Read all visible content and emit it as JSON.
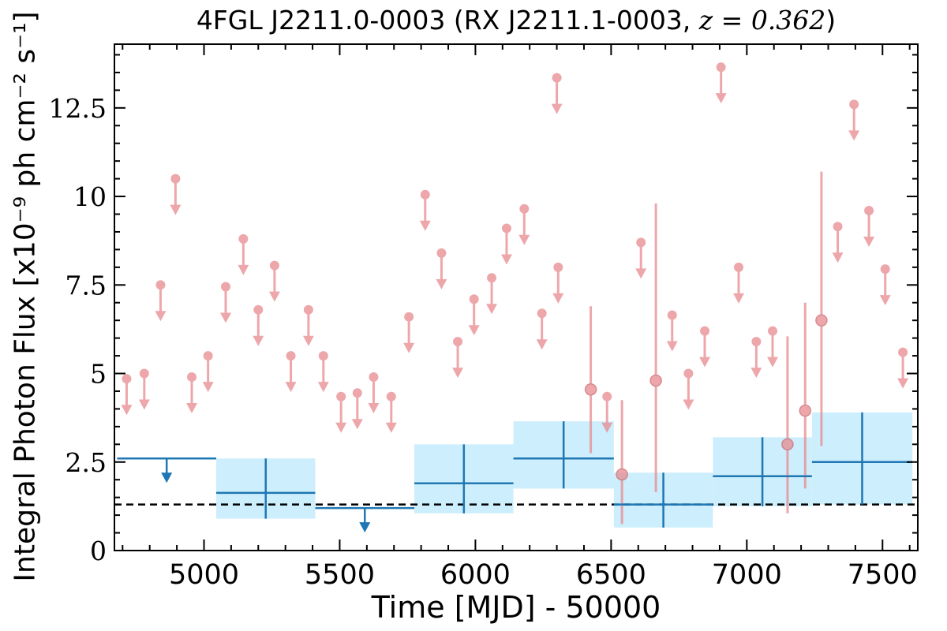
{
  "chart_data": {
    "type": "scatter",
    "title_prefix": "4FGL J2211.0-0003 (RX J2211.1-0003, ",
    "title_math": "z = 0.362",
    "title_suffix": ")",
    "xlabel": "Time [MJD] - 50000",
    "ylabel": "Integral Photon Flux [x10⁻⁹ ph cm⁻² s⁻¹]",
    "xlim": [
      4670,
      7630
    ],
    "ylim": [
      0,
      14.3
    ],
    "xticks": [
      5000,
      5500,
      6000,
      6500,
      7000,
      7500
    ],
    "yticks": [
      0,
      2.5,
      5,
      7.5,
      10,
      12.5
    ],
    "ytick_labels": [
      "0",
      "2.5",
      "5",
      "7.5",
      "10",
      "12.5"
    ],
    "colors": {
      "monthly": "#e88a8f",
      "yearly": "#1f77b4",
      "yearly_band": "#cdeefc",
      "baseline": "#000000"
    },
    "baseline_flux": 1.3,
    "monthly_upper_limits": [
      [
        4715,
        4.85
      ],
      [
        4780,
        5.0
      ],
      [
        4840,
        7.5
      ],
      [
        4895,
        10.5
      ],
      [
        4955,
        4.9
      ],
      [
        5015,
        5.5
      ],
      [
        5080,
        7.45
      ],
      [
        5145,
        8.8
      ],
      [
        5200,
        6.8
      ],
      [
        5260,
        8.05
      ],
      [
        5320,
        5.5
      ],
      [
        5385,
        6.8
      ],
      [
        5440,
        5.5
      ],
      [
        5505,
        4.35
      ],
      [
        5565,
        4.45
      ],
      [
        5625,
        4.9
      ],
      [
        5690,
        4.35
      ],
      [
        5755,
        6.6
      ],
      [
        5815,
        10.05
      ],
      [
        5875,
        8.4
      ],
      [
        5935,
        5.9
      ],
      [
        5995,
        7.1
      ],
      [
        6060,
        7.7
      ],
      [
        6115,
        9.1
      ],
      [
        6180,
        9.65
      ],
      [
        6245,
        6.7
      ],
      [
        6300,
        13.35
      ],
      [
        6305,
        8.0
      ],
      [
        6485,
        4.35
      ],
      [
        6610,
        8.7
      ],
      [
        6725,
        6.65
      ],
      [
        6785,
        5.0
      ],
      [
        6845,
        6.2
      ],
      [
        6905,
        13.65
      ],
      [
        6970,
        8.0
      ],
      [
        7035,
        5.9
      ],
      [
        7095,
        6.2
      ],
      [
        7335,
        9.15
      ],
      [
        7395,
        12.6
      ],
      [
        7450,
        9.6
      ],
      [
        7510,
        7.95
      ],
      [
        7575,
        5.6
      ]
    ],
    "monthly_detections": [
      [
        6425,
        4.55,
        2.75,
        6.9
      ],
      [
        6540,
        2.15,
        0.75,
        4.25
      ],
      [
        6665,
        4.8,
        1.65,
        9.8
      ],
      [
        7150,
        3.0,
        1.05,
        6.05
      ],
      [
        7215,
        3.95,
        1.75,
        7.0
      ],
      [
        7275,
        6.5,
        2.95,
        10.7
      ]
    ],
    "yearly_upper_limits": [
      [
        4680,
        5045,
        2.6
      ],
      [
        5410,
        5775,
        1.2
      ]
    ],
    "yearly_detections": [
      [
        5045,
        5410,
        1.63,
        0.9,
        2.6
      ],
      [
        5775,
        6140,
        1.9,
        1.05,
        3.0
      ],
      [
        6140,
        6510,
        2.6,
        1.75,
        3.65
      ],
      [
        6510,
        6875,
        1.3,
        0.65,
        2.2
      ],
      [
        6875,
        7240,
        2.1,
        1.25,
        3.2
      ],
      [
        7240,
        7610,
        2.5,
        1.3,
        3.9
      ]
    ]
  }
}
